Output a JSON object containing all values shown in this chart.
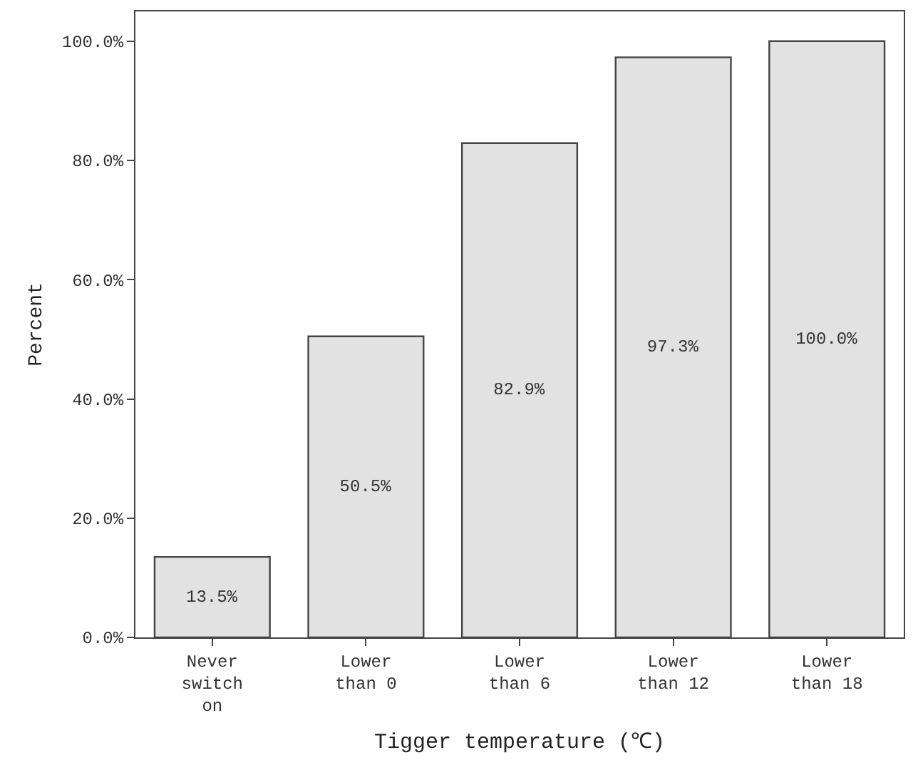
{
  "chart_data": {
    "type": "bar",
    "xlabel": "Tigger temperature (℃)",
    "ylabel": "Percent",
    "categories": [
      "Never\nswitch\non",
      "Lower\nthan 0",
      "Lower\nthan 6",
      "Lower\nthan 12",
      "Lower\nthan 18"
    ],
    "values": [
      13.5,
      50.5,
      82.9,
      97.3,
      100.0
    ],
    "value_labels": [
      "13.5%",
      "50.5%",
      "82.9%",
      "97.3%",
      "100.0%"
    ],
    "color": "#e2e2e2",
    "ylim": [
      0,
      105
    ],
    "yticks": [
      {
        "value": 0,
        "label": "0.0%"
      },
      {
        "value": 20,
        "label": "20.0%"
      },
      {
        "value": 40,
        "label": "40.0%"
      },
      {
        "value": 60,
        "label": "60.0%"
      },
      {
        "value": 80,
        "label": "80.0%"
      },
      {
        "value": 100,
        "label": "100.0%"
      }
    ],
    "grid": false
  }
}
